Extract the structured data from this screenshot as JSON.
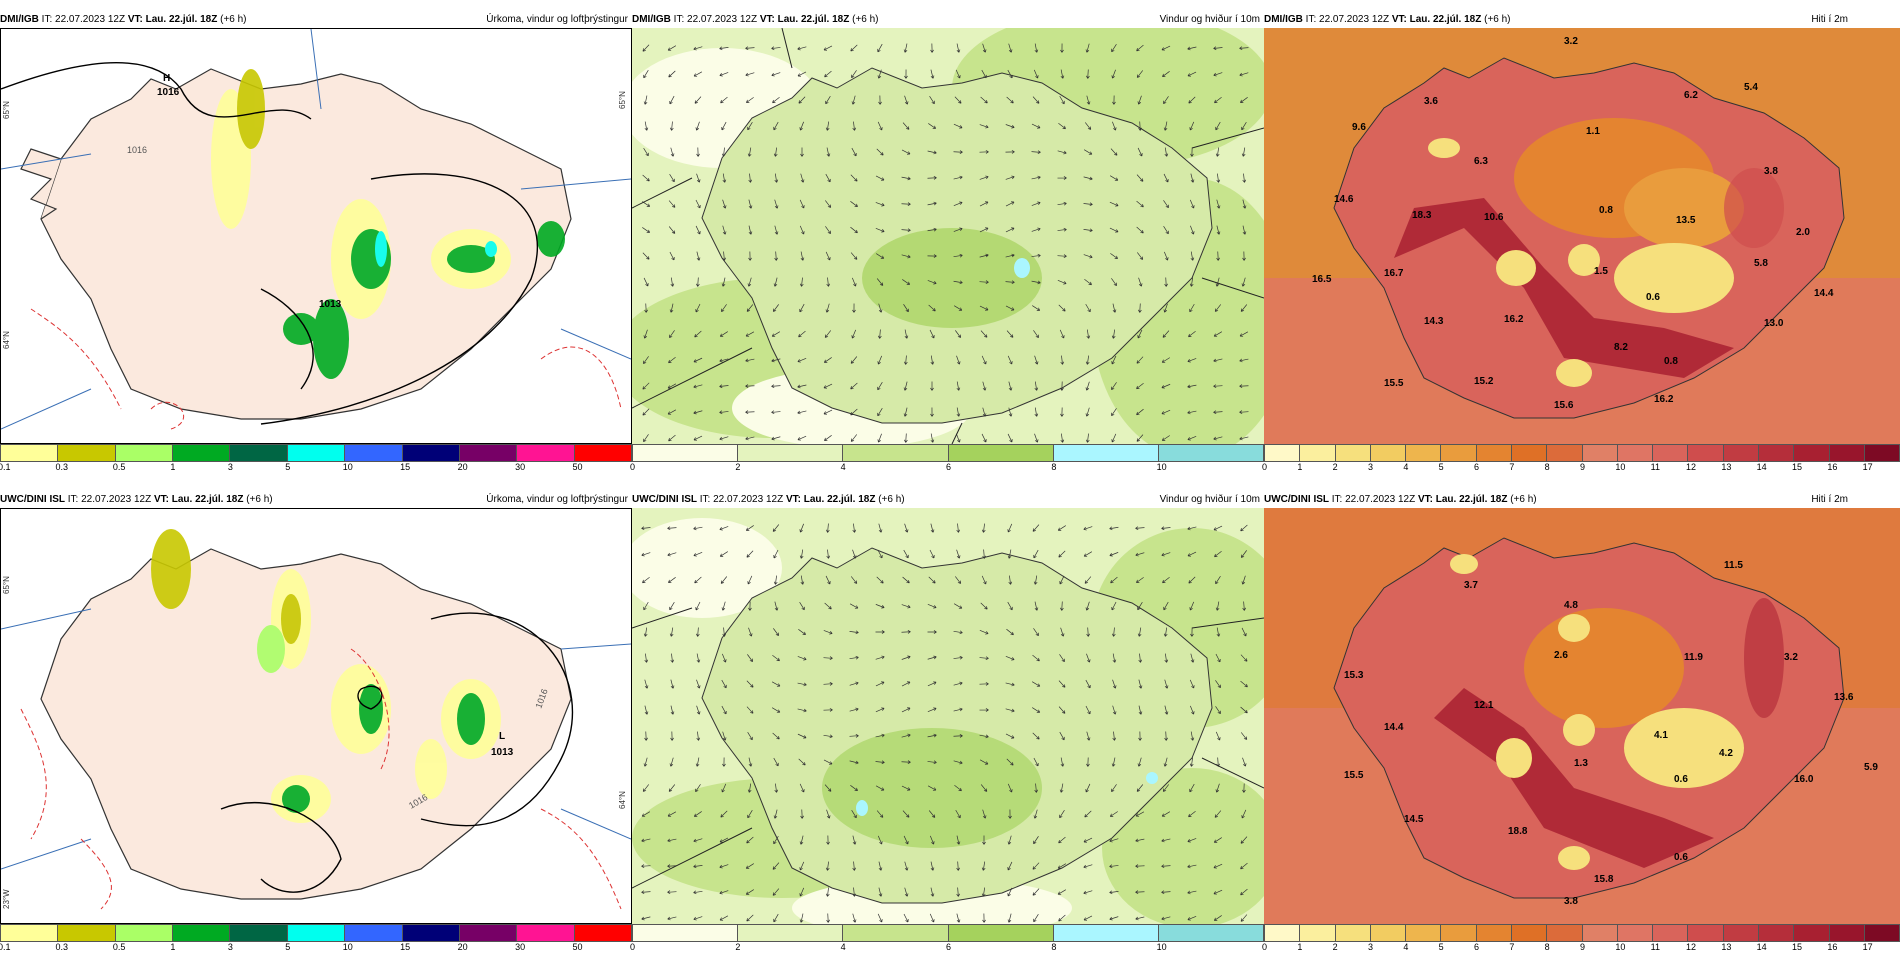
{
  "rows": [
    {
      "source": "DMI/IGB",
      "it_label": "IT: 22.07.2023 12Z",
      "vt_label": "VT: Lau. 22.júl. 18Z",
      "lead": "(+6 h)",
      "precip_panel": {
        "field": "Úrkoma, vindur og loftþrýstingur",
        "labels": [
          "H",
          "1016",
          "1013",
          "1016"
        ],
        "lat_labels": [
          "65°N",
          "65°N",
          "64°N"
        ]
      },
      "wind_panel": {
        "field": "Vindur og hviður í 10m"
      },
      "temp_panel": {
        "field": "Hiti í 2m",
        "labels": [
          "3.2",
          "3.6",
          "6.2",
          "5.4",
          "9.6",
          "6.3",
          "1.1",
          "14.6",
          "3.8",
          "18.3",
          "10.6",
          "0.8",
          "13.5",
          "2.0",
          "16.5",
          "16.7",
          "1.5",
          "0.6",
          "5.8",
          "14.4",
          "14.3",
          "16.2",
          "13.0",
          "8.2",
          "0.8",
          "15.5",
          "15.2",
          "15.6",
          "16.2"
        ]
      }
    },
    {
      "source": "UWC/DINI ISL",
      "it_label": "IT: 22.07.2023 12Z",
      "vt_label": "VT: Lau. 22.júl. 18Z",
      "lead": "(+6 h)",
      "precip_panel": {
        "field": "Úrkoma, vindur og loftþrýstingur",
        "labels": [
          "L",
          "1013",
          "1016",
          "1016"
        ],
        "lat_labels": [
          "65°N",
          "64°N",
          "23°W"
        ]
      },
      "wind_panel": {
        "field": "Vindur og hviður í 10m"
      },
      "temp_panel": {
        "field": "Hiti í 2m",
        "labels": [
          "11.5",
          "3.7",
          "4.8",
          "3.2",
          "15.3",
          "2.6",
          "11.9",
          "13.6",
          "12.1",
          "14.4",
          "4.1",
          "15.5",
          "1.3",
          "0.6",
          "4.2",
          "16.0",
          "5.9",
          "14.5",
          "18.8",
          "0.6",
          "15.8",
          "3.8"
        ]
      }
    }
  ],
  "colorbars": {
    "precip": {
      "ticks": [
        "0.1",
        "0.3",
        "0.5",
        "1",
        "3",
        "5",
        "10",
        "15",
        "20",
        "30",
        "50"
      ],
      "colors": [
        "#ffff99",
        "#c8c800",
        "#aaff66",
        "#00aa22",
        "#006644",
        "#00ffee",
        "#3366ff",
        "#000077",
        "#770066",
        "#ff1493",
        "#ff0000"
      ]
    },
    "wind": {
      "ticks": [
        "0",
        "2",
        "4",
        "6",
        "8",
        "10"
      ],
      "colors": [
        "#fbfde7",
        "#e4f3be",
        "#c7e48d",
        "#a5d25d",
        "#aaf6ff",
        "#88dcdc"
      ]
    },
    "temp": {
      "ticks": [
        "0",
        "1",
        "2",
        "3",
        "4",
        "5",
        "6",
        "7",
        "8",
        "9",
        "10",
        "11",
        "12",
        "13",
        "14",
        "15",
        "16",
        "17"
      ],
      "colors": [
        "#fff9c8",
        "#fbef9e",
        "#f6e07d",
        "#f2cc61",
        "#eeb54d",
        "#e99c3d",
        "#e48430",
        "#df7026",
        "#dc6b3a",
        "#e08066",
        "#df7564",
        "#d9645b",
        "#cf4d4d",
        "#c13c42",
        "#b52e3a",
        "#a82031",
        "#98152c",
        "#7d0a24"
      ]
    }
  },
  "colors": {
    "land_precip": "#fbe9de",
    "sea_precip": "#ffffff",
    "sea_temp": "#df8a3a",
    "land_wind": "#c5e08e"
  }
}
